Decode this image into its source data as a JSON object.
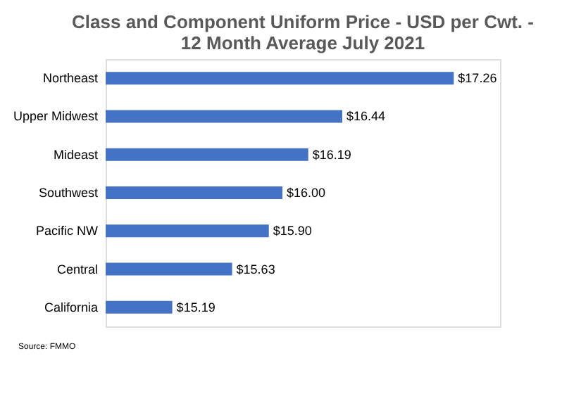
{
  "chart_data": {
    "type": "bar",
    "orientation": "horizontal",
    "title": [
      "Class and Component Uniform Price - USD per Cwt. -",
      "12 Month Average July 2021"
    ],
    "categories": [
      "Northeast",
      "Upper Midwest",
      "Mideast",
      "Southwest",
      "Pacific NW",
      "Central",
      "California"
    ],
    "values": [
      17.26,
      16.44,
      16.19,
      16.0,
      15.9,
      15.63,
      15.19
    ],
    "value_labels": [
      "$17.26",
      "$16.44",
      "$16.19",
      "$16.00",
      "$15.90",
      "$15.63",
      "$15.19"
    ],
    "color": "#4472c4",
    "xlim": [
      14.7,
      17.6
    ],
    "grid": false,
    "annotations": [
      "Source: FMMO"
    ]
  }
}
